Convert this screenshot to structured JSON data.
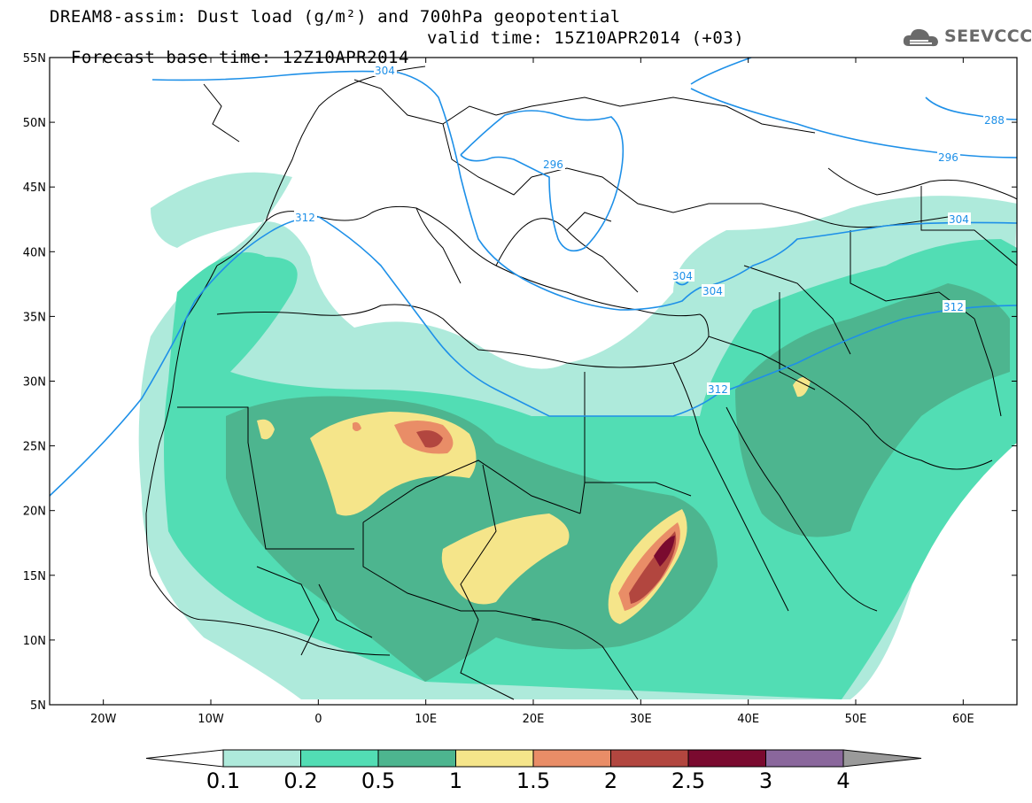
{
  "header": {
    "title_line1": "DREAM8-assim: Dust load (g/m²) and 700hPa geopotential",
    "title_line2_base": "Forecast base time: 12Z10APR2014",
    "title_line2_valid": "valid time: 15Z10APR2014 (+03)",
    "logo_text": "SEEVCCC",
    "logo_icon": "cloud-logo-icon"
  },
  "map": {
    "lon_range": [
      -25,
      65
    ],
    "lat_range": [
      5,
      55
    ],
    "lat_labels": [
      "55N",
      "50N",
      "45N",
      "40N",
      "35N",
      "30N",
      "25N",
      "20N",
      "15N",
      "10N",
      "5N"
    ],
    "lon_labels": [
      "20W",
      "10W",
      "0",
      "10E",
      "20E",
      "30E",
      "40E",
      "50E",
      "60E"
    ],
    "contour_labels": [
      "304",
      "296",
      "288",
      "312",
      "304",
      "296",
      "304",
      "312",
      "312",
      "304"
    ]
  },
  "legend": {
    "labels": [
      "0.1",
      "0.2",
      "0.5",
      "1",
      "1.5",
      "2",
      "2.5",
      "3",
      "4"
    ],
    "colors": [
      "#aeeadb",
      "#52ddb4",
      "#4db58f",
      "#f5e58a",
      "#e98d67",
      "#b2463f",
      "#7a0a2f",
      "#8a679c"
    ]
  },
  "colors": {
    "contour": "#1e90e8",
    "coastline": "#000000"
  }
}
